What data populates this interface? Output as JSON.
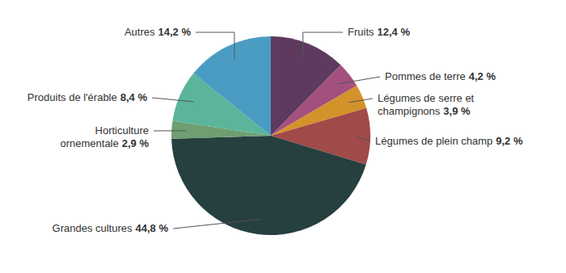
{
  "chart_data": {
    "type": "pie",
    "categories": [
      "Fruits",
      "Pommes de terre",
      "Légumes de serre et champignons",
      "Légumes de plein champ",
      "Grandes cultures",
      "Horticulture ornementale",
      "Produits de l'érable",
      "Autres"
    ],
    "values": [
      12.4,
      4.2,
      3.9,
      9.2,
      44.8,
      2.9,
      8.4,
      14.2
    ],
    "value_labels": [
      "12,4 %",
      "4,2 %",
      "3,9 %",
      "9,2 %",
      "44,8 %",
      "2,9 %",
      "8,4 %",
      "14,2 %"
    ],
    "colors": [
      "#5e3a5e",
      "#a3507e",
      "#d4922a",
      "#a04a4a",
      "#263f3f",
      "#6f9e72",
      "#5bb59a",
      "#4b9cc3"
    ],
    "data_labels": true
  }
}
